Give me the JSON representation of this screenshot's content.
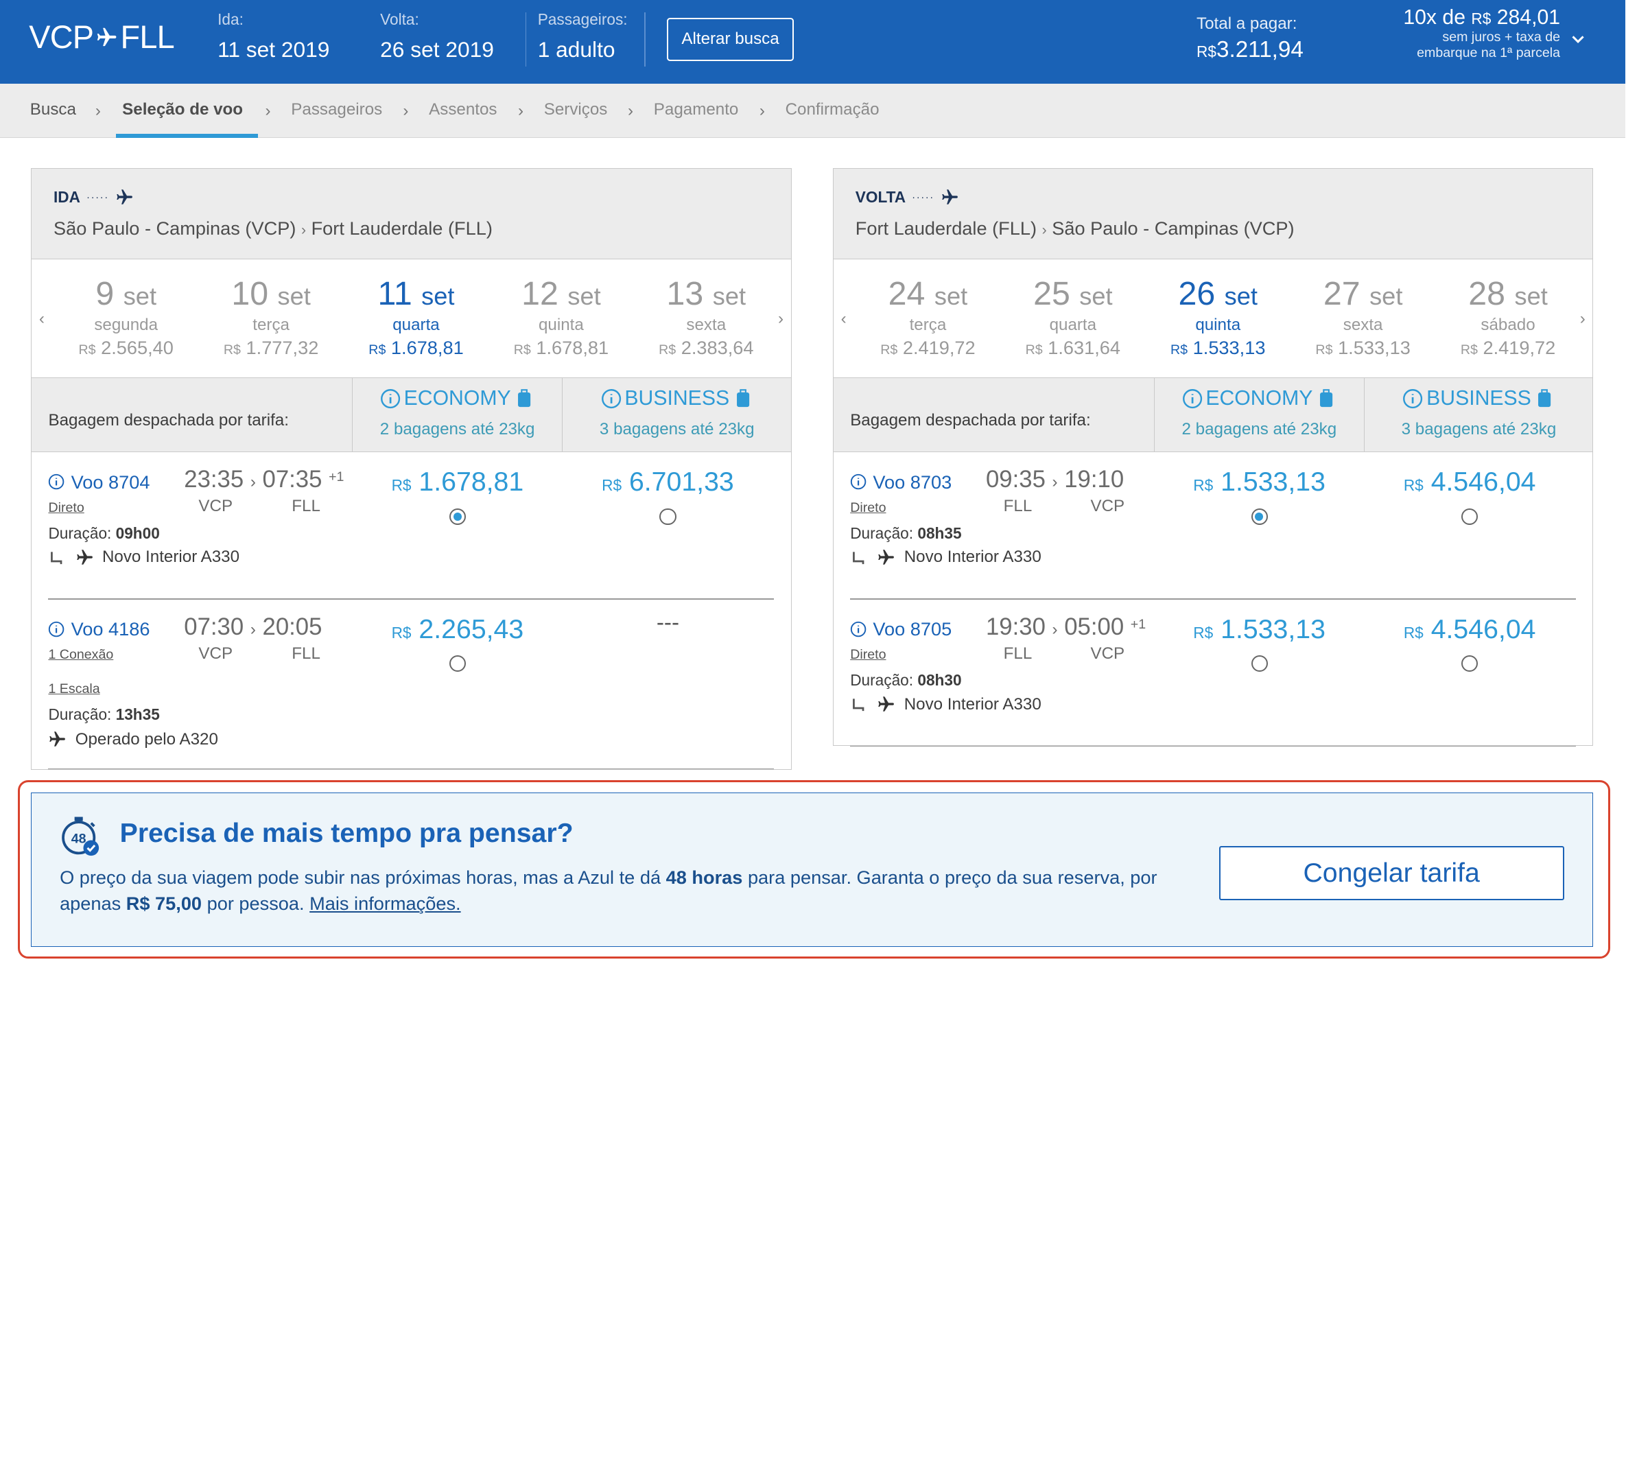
{
  "header": {
    "origin": "VCP",
    "destination": "FLL",
    "ida_label": "Ida:",
    "ida_value": "11  set  2019",
    "volta_label": "Volta:",
    "volta_value": "26  set  2019",
    "pass_label": "Passageiros:",
    "pass_value": "1 adulto",
    "alterar_label": "Alterar busca",
    "total_label": "Total a pagar:",
    "total_currency": "R$",
    "total_value": "3.211,94",
    "inst_count": "10x de",
    "inst_currency": "R$",
    "inst_value": "284,01",
    "inst_note1": "sem juros + taxa de",
    "inst_note2": "embarque na 1ª parcela"
  },
  "breadcrumb": [
    "Busca",
    "Seleção de voo",
    "Passageiros",
    "Assentos",
    "Serviços",
    "Pagamento",
    "Confirmação"
  ],
  "currency": "R$",
  "ida": {
    "label": "IDA",
    "from": "São Paulo - Campinas (VCP)",
    "to": "Fort Lauderdale (FLL)",
    "dates": [
      {
        "day": "9",
        "mon": "set",
        "weekday": "segunda",
        "price": "2.565,40"
      },
      {
        "day": "10",
        "mon": "set",
        "weekday": "terça",
        "price": "1.777,32"
      },
      {
        "day": "11",
        "mon": "set",
        "weekday": "quarta",
        "price": "1.678,81"
      },
      {
        "day": "12",
        "mon": "set",
        "weekday": "quinta",
        "price": "1.678,81"
      },
      {
        "day": "13",
        "mon": "set",
        "weekday": "sexta",
        "price": "2.383,64"
      }
    ],
    "baggage_label": "Bagagem despachada por tarifa:",
    "economy": "ECONOMY",
    "economy_bag": "2 bagagens até 23kg",
    "business": "BUSINESS",
    "business_bag": "3 bagagens até 23kg",
    "flights": [
      {
        "number": "Voo 8704",
        "type": "Direto",
        "dep": "23:35",
        "arr": "07:35",
        "plus": "+1",
        "from": "VCP",
        "to": "FLL",
        "dur_label": "Duração:",
        "dur": "09h00",
        "aircraft": "Novo Interior A330",
        "economy": "1.678,81",
        "business": "6.701,33"
      },
      {
        "number": "Voo 4186",
        "type": "1 Conexão",
        "stops": "1 Escala",
        "dep": "07:30",
        "arr": "20:05",
        "from": "VCP",
        "to": "FLL",
        "dur_label": "Duração:",
        "dur": "13h35",
        "aircraft": "Operado pelo A320",
        "economy": "2.265,43",
        "business": "---"
      }
    ]
  },
  "volta": {
    "label": "VOLTA",
    "from": "Fort Lauderdale (FLL)",
    "to": "São Paulo - Campinas (VCP)",
    "dates": [
      {
        "day": "24",
        "mon": "set",
        "weekday": "terça",
        "price": "2.419,72"
      },
      {
        "day": "25",
        "mon": "set",
        "weekday": "quarta",
        "price": "1.631,64"
      },
      {
        "day": "26",
        "mon": "set",
        "weekday": "quinta",
        "price": "1.533,13"
      },
      {
        "day": "27",
        "mon": "set",
        "weekday": "sexta",
        "price": "1.533,13"
      },
      {
        "day": "28",
        "mon": "set",
        "weekday": "sábado",
        "price": "2.419,72"
      }
    ],
    "baggage_label": "Bagagem despachada por tarifa:",
    "economy": "ECONOMY",
    "economy_bag": "2 bagagens até 23kg",
    "business": "BUSINESS",
    "business_bag": "3 bagagens até 23kg",
    "flights": [
      {
        "number": "Voo 8703",
        "type": "Direto",
        "dep": "09:35",
        "arr": "19:10",
        "from": "FLL",
        "to": "VCP",
        "dur_label": "Duração:",
        "dur": "08h35",
        "aircraft": "Novo Interior A330",
        "economy": "1.533,13",
        "business": "4.546,04"
      },
      {
        "number": "Voo 8705",
        "type": "Direto",
        "dep": "19:30",
        "arr": "05:00",
        "plus": "+1",
        "from": "FLL",
        "to": "VCP",
        "dur_label": "Duração:",
        "dur": "08h30",
        "aircraft": "Novo Interior A330",
        "economy": "1.533,13",
        "business": "4.546,04"
      }
    ]
  },
  "promo": {
    "icon_text": "48",
    "title": "Precisa de mais tempo pra pensar?",
    "text1": "O preço da sua viagem pode subir nas próximas horas, mas a Azul te dá ",
    "bold1": "48 horas",
    "text2": " para pensar. Garanta o preço da sua reserva, por apenas ",
    "bold2": "R$ 75,00",
    "text3": " por pessoa. ",
    "link": "Mais informações.",
    "button": "Congelar tarifa"
  },
  "colors": {
    "header": "#1a62b6",
    "accent": "#2e9ad6",
    "highlight_frame": "#d9432e"
  }
}
